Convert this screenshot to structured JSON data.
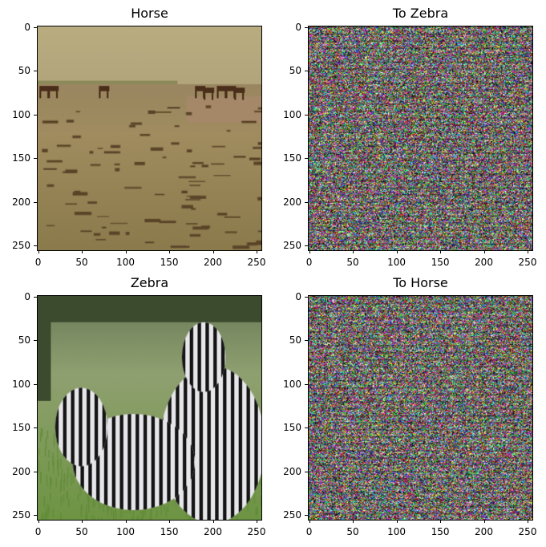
{
  "chart_data": [
    {
      "type": "image",
      "title": "Horse",
      "content": "photo",
      "xlim": [
        0,
        256
      ],
      "ylim": [
        256,
        0
      ],
      "xticks": [
        0,
        50,
        100,
        150,
        200,
        250
      ],
      "yticks": [
        0,
        50,
        100,
        150,
        200,
        250
      ]
    },
    {
      "type": "image",
      "title": "To Zebra",
      "content": "noise",
      "xlim": [
        0,
        256
      ],
      "ylim": [
        256,
        0
      ],
      "xticks": [
        0,
        50,
        100,
        150,
        200,
        250
      ],
      "yticks": [
        0,
        50,
        100,
        150,
        200,
        250
      ]
    },
    {
      "type": "image",
      "title": "Zebra",
      "content": "photo",
      "xlim": [
        0,
        256
      ],
      "ylim": [
        256,
        0
      ],
      "xticks": [
        0,
        50,
        100,
        150,
        200,
        250
      ],
      "yticks": [
        0,
        50,
        100,
        150,
        200,
        250
      ]
    },
    {
      "type": "image",
      "title": "To Horse",
      "content": "noise",
      "xlim": [
        0,
        256
      ],
      "ylim": [
        256,
        0
      ],
      "xticks": [
        0,
        50,
        100,
        150,
        200,
        250
      ],
      "yticks": [
        0,
        50,
        100,
        150,
        200,
        250
      ]
    }
  ]
}
